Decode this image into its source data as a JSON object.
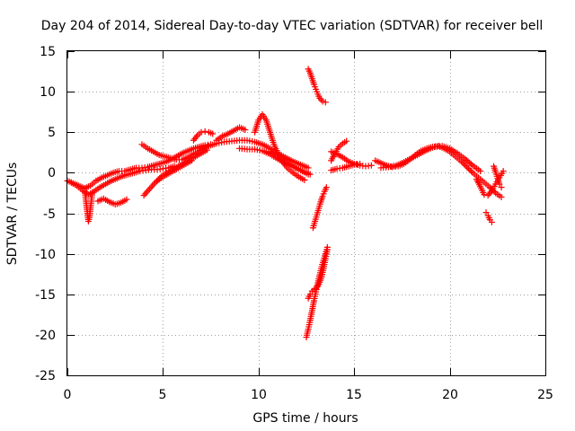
{
  "chart_data": {
    "type": "scatter",
    "title": "Day 204 of 2014, Sidereal Day-to-day VTEC variation (SDTVAR) for receiver bell",
    "xlabel": "GPS time / hours",
    "ylabel": "SDTVAR / TECUs",
    "xlim": [
      0,
      25
    ],
    "ylim": [
      -25,
      15
    ],
    "xticks": [
      0,
      5,
      10,
      15,
      20,
      25
    ],
    "xtick_labels": [
      "0",
      "5",
      "10",
      "15",
      "20",
      "25"
    ],
    "yticks": [
      15,
      10,
      5,
      0,
      -5,
      -10,
      -15,
      -20,
      -25
    ],
    "ytick_labels": [
      "15",
      "10",
      "5",
      "0",
      "-5",
      "-10",
      "-15",
      "-20",
      "-25"
    ],
    "grid": true,
    "marker": "+",
    "series": [
      {
        "name": "SDTVAR",
        "color": "#ff0000",
        "segments": [
          {
            "x": [
              0.0,
              0.3,
              0.6,
              0.9,
              1.2,
              1.5,
              1.8,
              2.1,
              2.4,
              2.7,
              3.0,
              3.3,
              3.6,
              3.9,
              4.2,
              4.5,
              4.8,
              5.1,
              5.4,
              5.7,
              6.0,
              6.3,
              6.6,
              6.9,
              7.2,
              7.5
            ],
            "y": [
              -1.0,
              -1.3,
              -1.6,
              -1.9,
              -1.6,
              -1.0,
              -0.6,
              -0.3,
              0.0,
              0.2,
              0.2,
              0.4,
              0.6,
              0.6,
              0.7,
              0.9,
              1.1,
              1.3,
              1.6,
              2.0,
              2.4,
              2.7,
              3.0,
              3.2,
              3.4,
              3.5
            ]
          },
          {
            "x": [
              0.2,
              0.5,
              0.8,
              1.1,
              1.4,
              1.7,
              2.0,
              2.3,
              2.6,
              2.9,
              3.2,
              3.5,
              3.8,
              4.1,
              4.4,
              4.7,
              5.0,
              5.3,
              5.6
            ],
            "y": [
              -1.2,
              -1.6,
              -2.2,
              -2.7,
              -2.3,
              -1.8,
              -1.4,
              -1.0,
              -0.7,
              -0.4,
              -0.2,
              0.0,
              0.2,
              0.3,
              0.4,
              0.4,
              0.5,
              0.6,
              0.8
            ]
          },
          {
            "x": [
              0.9,
              0.95,
              1.0,
              1.05,
              1.1,
              1.15,
              1.2,
              1.25,
              1.3
            ],
            "y": [
              -2.0,
              -3.0,
              -4.0,
              -5.0,
              -6.0,
              -5.5,
              -4.5,
              -3.5,
              -2.5
            ]
          },
          {
            "x": [
              1.6,
              1.9,
              2.2,
              2.5,
              2.8,
              3.1
            ],
            "y": [
              -3.5,
              -3.2,
              -3.6,
              -3.9,
              -3.7,
              -3.3
            ]
          },
          {
            "x": [
              3.9,
              4.2,
              4.5,
              4.8,
              5.1,
              5.4,
              5.7,
              6.0,
              6.3,
              6.6,
              6.9,
              7.2
            ],
            "y": [
              3.5,
              3.0,
              2.6,
              2.2,
              2.0,
              1.8,
              1.6,
              1.6,
              1.9,
              2.3,
              2.7,
              3.0
            ]
          },
          {
            "x": [
              4.0,
              4.3,
              4.6,
              4.9,
              5.2,
              5.5,
              5.8,
              6.1,
              6.4,
              6.7,
              7.0,
              7.3
            ],
            "y": [
              -2.8,
              -2.0,
              -1.2,
              -0.5,
              0.0,
              0.4,
              0.8,
              1.2,
              1.6,
              2.0,
              2.4,
              2.8
            ]
          },
          {
            "x": [
              4.7,
              5.0,
              5.3,
              5.6,
              5.9,
              6.2,
              6.5
            ],
            "y": [
              -1.0,
              -0.5,
              -0.1,
              0.3,
              0.7,
              1.1,
              1.5
            ]
          },
          {
            "x": [
              6.6,
              6.8,
              7.0,
              7.2,
              7.4,
              7.6
            ],
            "y": [
              4.0,
              4.6,
              5.0,
              5.1,
              5.0,
              4.8
            ]
          },
          {
            "x": [
              7.0,
              7.4,
              7.8,
              8.2,
              8.6,
              9.0,
              9.4,
              9.8,
              10.2,
              10.6,
              11.0,
              11.4,
              11.8,
              12.2,
              12.6
            ],
            "y": [
              3.0,
              3.3,
              3.6,
              3.8,
              3.9,
              4.0,
              4.0,
              3.8,
              3.5,
              3.0,
              2.4,
              1.9,
              1.4,
              1.0,
              0.6
            ]
          },
          {
            "x": [
              7.8,
              8.1,
              8.4,
              8.7,
              9.0,
              9.3
            ],
            "y": [
              4.0,
              4.5,
              4.8,
              5.2,
              5.6,
              5.3
            ]
          },
          {
            "x": [
              9.0,
              9.4,
              9.8,
              10.2,
              10.6,
              11.0,
              11.4,
              11.8,
              12.2,
              12.6
            ],
            "y": [
              3.0,
              2.9,
              2.9,
              2.7,
              2.3,
              1.7,
              1.2,
              0.8,
              0.3,
              -0.2
            ]
          },
          {
            "x": [
              9.8,
              10.0,
              10.2,
              10.4,
              10.6,
              10.8,
              11.0
            ],
            "y": [
              5.0,
              6.5,
              7.2,
              6.5,
              5.0,
              3.5,
              2.5
            ]
          },
          {
            "x": [
              10.6,
              10.9,
              11.2,
              11.5,
              11.8,
              12.1,
              12.4
            ],
            "y": [
              2.6,
              2.2,
              1.5,
              0.6,
              0.0,
              -0.5,
              -0.9
            ]
          },
          {
            "x": [
              11.2,
              11.5,
              11.8,
              12.1,
              12.4,
              12.7
            ],
            "y": [
              2.0,
              1.3,
              0.8,
              0.4,
              0.1,
              -0.2
            ]
          },
          {
            "x": [
              12.6,
              12.7,
              12.8,
              12.9,
              13.0,
              13.1,
              13.2,
              13.35,
              13.5
            ],
            "y": [
              12.8,
              12.3,
              11.6,
              10.9,
              10.3,
              9.7,
              9.2,
              8.8,
              8.7
            ]
          },
          {
            "x": [
              12.85,
              12.95,
              13.05,
              13.15,
              13.25,
              13.35,
              13.45,
              13.55
            ],
            "y": [
              -6.8,
              -6.0,
              -5.2,
              -4.4,
              -3.6,
              -2.9,
              -2.3,
              -1.8
            ]
          },
          {
            "x": [
              12.5,
              12.6,
              12.7,
              12.8,
              12.9,
              13.0,
              13.1,
              13.2,
              13.3,
              13.4,
              13.5,
              13.6
            ],
            "y": [
              -20.3,
              -19.3,
              -18.2,
              -17.0,
              -15.8,
              -14.7,
              -13.6,
              -12.6,
              -11.6,
              -10.8,
              -10.0,
              -9.2
            ]
          },
          {
            "x": [
              12.6,
              12.7,
              12.8,
              12.9,
              13.0,
              13.1,
              13.2,
              13.3,
              13.4,
              13.5,
              13.6
            ],
            "y": [
              -15.5,
              -15.0,
              -14.6,
              -14.4,
              -14.3,
              -14.0,
              -13.5,
              -12.8,
              -11.8,
              -10.6,
              -9.5
            ]
          },
          {
            "x": [
              13.8,
              14.0,
              14.2,
              14.4,
              14.6
            ],
            "y": [
              1.5,
              2.4,
              3.2,
              3.6,
              3.9
            ]
          },
          {
            "x": [
              13.8,
              14.1,
              14.4,
              14.7,
              15.0,
              15.3,
              15.6,
              15.9
            ],
            "y": [
              2.6,
              2.3,
              1.9,
              1.4,
              1.1,
              0.9,
              0.8,
              0.9
            ]
          },
          {
            "x": [
              13.8,
              14.1,
              14.4,
              14.7,
              15.0,
              15.3
            ],
            "y": [
              0.3,
              0.5,
              0.6,
              0.8,
              1.0,
              1.1
            ]
          },
          {
            "x": [
              16.1,
              16.4,
              16.7,
              17.0,
              17.3,
              17.6,
              17.9,
              18.2,
              18.5,
              18.8,
              19.1,
              19.4,
              19.7,
              20.0,
              20.3,
              20.6,
              20.9,
              21.2,
              21.5,
              21.8,
              22.1,
              22.4,
              22.7
            ],
            "y": [
              1.5,
              1.2,
              0.9,
              0.7,
              0.8,
              1.1,
              1.6,
              2.2,
              2.7,
              3.0,
              3.2,
              3.3,
              3.0,
              2.6,
              2.0,
              1.4,
              0.7,
              0.0,
              -0.6,
              -1.2,
              -1.8,
              -2.5,
              -3.0
            ]
          },
          {
            "x": [
              16.4,
              16.8,
              17.2,
              17.6,
              18.0,
              18.4,
              18.8,
              19.2,
              19.6,
              20.0,
              20.4,
              20.8,
              21.2,
              21.6
            ],
            "y": [
              0.6,
              0.7,
              0.9,
              1.3,
              1.8,
              2.3,
              2.8,
              3.2,
              3.3,
              3.0,
              2.4,
              1.7,
              0.9,
              0.2
            ]
          },
          {
            "x": [
              21.4,
              21.6,
              21.8,
              22.0,
              22.2,
              22.4,
              22.6,
              22.8
            ],
            "y": [
              -0.8,
              -1.7,
              -2.7,
              -2.8,
              -2.2,
              -1.4,
              -0.6,
              0.2
            ]
          },
          {
            "x": [
              21.9,
              22.0,
              22.1,
              22.2
            ],
            "y": [
              -4.9,
              -5.3,
              -5.8,
              -6.1
            ]
          },
          {
            "x": [
              22.3,
              22.4,
              22.5,
              22.6,
              22.7
            ],
            "y": [
              0.8,
              0.1,
              -0.7,
              -1.4,
              -1.8
            ]
          }
        ]
      }
    ]
  }
}
